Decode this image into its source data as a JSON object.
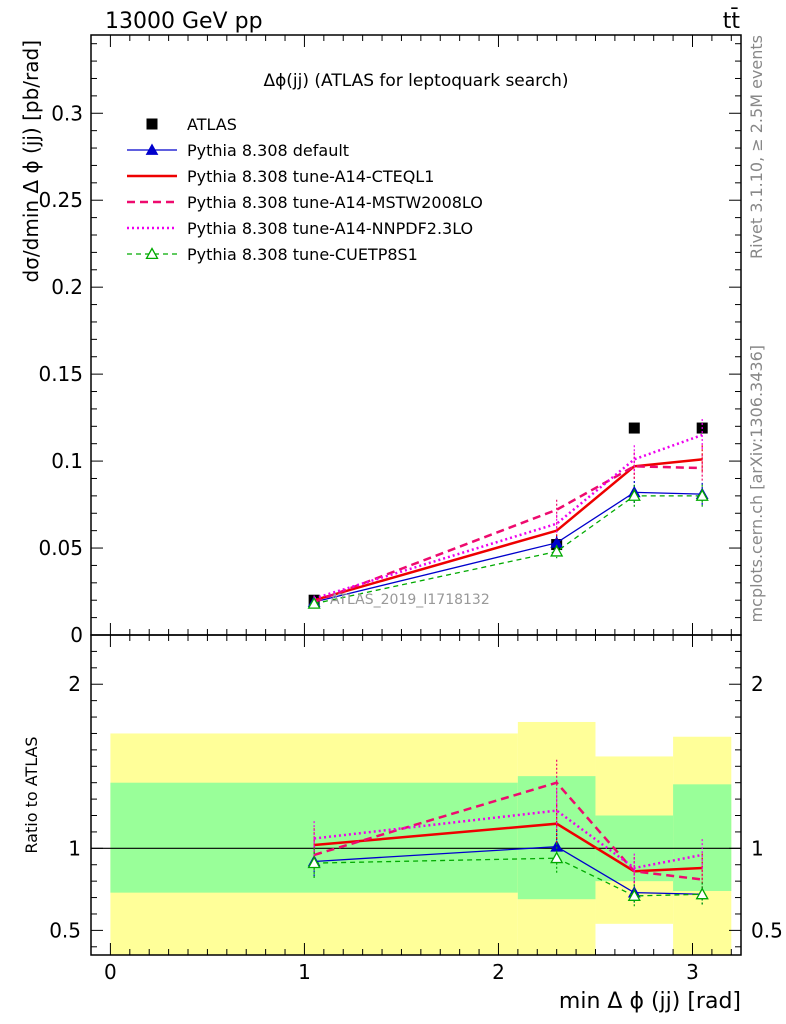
{
  "header": {
    "process": "13000 GeV pp",
    "final_state": "tt̄"
  },
  "side_notes": {
    "rivet": "Rivet 3.1.10, ≥ 2.5M events",
    "source": "mcplots.cern.ch [arXiv:1306.3436]"
  },
  "chart_data": [
    {
      "type": "line",
      "title": "Δϕ(jj) (ATLAS for leptoquark search)",
      "watermark": "ATLAS_2019_I1718132",
      "ylabel": "dσ/dmin Δ ϕ (jj) [pb/rad]",
      "xlabel": "",
      "xlim": [
        -0.1,
        3.25
      ],
      "ylim": [
        0,
        0.345
      ],
      "yticks": [
        0,
        0.05,
        0.1,
        0.15,
        0.2,
        0.25,
        0.3
      ],
      "ytick_labels": [
        "0",
        "0.05",
        "0.1",
        "0.15",
        "0.2",
        "0.25",
        "0.3"
      ],
      "legend_position": "top-left",
      "x": [
        1.05,
        2.3,
        2.7,
        3.05
      ],
      "series": [
        {
          "name": "ATLAS",
          "values": [
            0.02,
            0.052,
            0.119,
            0.119
          ],
          "color": "#000000",
          "style": "data"
        },
        {
          "name": "Pythia 8.308 default",
          "values": [
            0.019,
            0.053,
            0.082,
            0.081
          ],
          "color": "#0000cc",
          "style": "solid-thin",
          "marker": "triangle-filled"
        },
        {
          "name": "Pythia 8.308 tune-A14-CTEQL1",
          "values": [
            0.02,
            0.06,
            0.097,
            0.101
          ],
          "color": "#ee0000",
          "style": "solid-thick"
        },
        {
          "name": "Pythia 8.308 tune-A14-MSTW2008LO",
          "values": [
            0.019,
            0.072,
            0.097,
            0.096
          ],
          "color": "#ee0a6e",
          "style": "dashed"
        },
        {
          "name": "Pythia 8.308 tune-A14-NNPDF2.3LO",
          "values": [
            0.021,
            0.064,
            0.101,
            0.115
          ],
          "color": "#ee00ee",
          "style": "dotted"
        },
        {
          "name": "Pythia 8.308 tune-CUETP8S1",
          "values": [
            0.018,
            0.048,
            0.08,
            0.08
          ],
          "color": "#00aa00",
          "style": "dashed-thin",
          "marker": "triangle-open"
        }
      ]
    },
    {
      "type": "line",
      "ylabel": "Ratio to ATLAS",
      "xlabel": "min Δ ϕ (jj) [rad]",
      "xlim": [
        -0.1,
        3.25
      ],
      "ylim": [
        0.35,
        2.3
      ],
      "yticks": [
        0.5,
        1,
        2
      ],
      "ytick_labels": [
        "0.5",
        "1",
        "2"
      ],
      "xticks": [
        0,
        1,
        2,
        3
      ],
      "xtick_labels": [
        "0",
        "1",
        "2",
        "3"
      ],
      "uncertainty_bands": {
        "bins": [
          [
            0,
            2.1
          ],
          [
            2.1,
            2.5
          ],
          [
            2.5,
            2.9
          ],
          [
            2.9,
            3.2
          ]
        ],
        "outer": [
          [
            0.35,
            1.7
          ],
          [
            0.35,
            1.77
          ],
          [
            0.54,
            1.56
          ],
          [
            0.35,
            1.68
          ]
        ],
        "inner": [
          [
            0.73,
            1.4
          ],
          [
            0.69,
            1.44
          ],
          [
            0.8,
            1.2
          ],
          [
            0.74,
            1.39
          ]
        ],
        "outer_color": "#ffff99",
        "inner_color": "#99ff99"
      },
      "x": [
        1.05,
        2.3,
        2.7,
        3.05
      ],
      "series": [
        {
          "name": "Pythia 8.308 default",
          "values": [
            0.92,
            1.01,
            0.73,
            0.72
          ],
          "color": "#0000cc",
          "style": "solid-thin",
          "marker": "triangle-filled"
        },
        {
          "name": "Pythia 8.308 tune-A14-CTEQL1",
          "values": [
            1.02,
            1.15,
            0.86,
            0.88
          ],
          "color": "#ee0000",
          "style": "solid-thick"
        },
        {
          "name": "Pythia 8.308 tune-A14-MSTW2008LO",
          "values": [
            0.96,
            1.4,
            0.86,
            0.81
          ],
          "color": "#ee0a6e",
          "style": "dashed"
        },
        {
          "name": "Pythia 8.308 tune-A14-NNPDF2.3LO",
          "values": [
            1.06,
            1.23,
            0.88,
            0.96
          ],
          "color": "#ee00ee",
          "style": "dotted"
        },
        {
          "name": "Pythia 8.308 tune-CUETP8S1",
          "values": [
            0.91,
            0.94,
            0.71,
            0.72
          ],
          "color": "#00aa00",
          "style": "dashed-thin",
          "marker": "triangle-open"
        }
      ]
    }
  ]
}
